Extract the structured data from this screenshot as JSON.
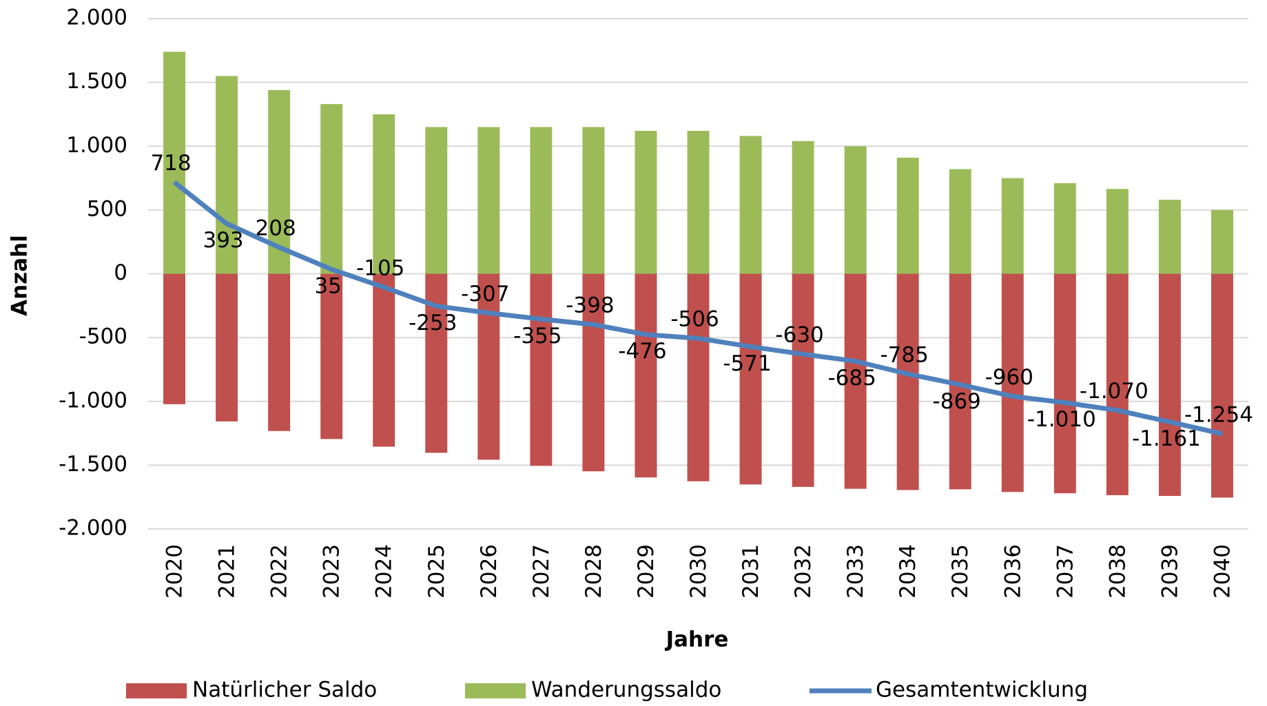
{
  "chart_data": {
    "type": "bar",
    "x_label": "Jahre",
    "y_label": "Anzahl",
    "categories": [
      "2020",
      "2021",
      "2022",
      "2023",
      "2024",
      "2025",
      "2026",
      "2027",
      "2028",
      "2029",
      "2030",
      "2031",
      "2032",
      "2033",
      "2034",
      "2035",
      "2036",
      "2037",
      "2038",
      "2039",
      "2040"
    ],
    "series": [
      {
        "name": "Natürlicher Saldo",
        "color": "#c0504d",
        "type": "bar",
        "values": [
          -1022,
          -1157,
          -1232,
          -1295,
          -1355,
          -1403,
          -1457,
          -1505,
          -1548,
          -1596,
          -1626,
          -1651,
          -1670,
          -1685,
          -1695,
          -1689,
          -1710,
          -1720,
          -1735,
          -1741,
          -1754
        ]
      },
      {
        "name": "Wanderungssaldo",
        "color": "#9bbb59",
        "type": "bar",
        "values": [
          1740,
          1550,
          1440,
          1330,
          1250,
          1150,
          1150,
          1150,
          1150,
          1120,
          1120,
          1080,
          1040,
          1000,
          910,
          820,
          750,
          710,
          665,
          580,
          500
        ]
      },
      {
        "name": "Gesamtentwicklung",
        "color": "#4f81bd",
        "type": "line",
        "values": [
          718,
          393,
          208,
          35,
          -105,
          -253,
          -307,
          -355,
          -398,
          -476,
          -506,
          -571,
          -630,
          -685,
          -785,
          -869,
          -960,
          -1010,
          -1070,
          -1161,
          -1254
        ],
        "value_labels": [
          "718",
          "393",
          "208",
          "35",
          "-105",
          "-253",
          "-307",
          "-355",
          "-398",
          "-476",
          "-506",
          "-571",
          "-630",
          "-685",
          "-785",
          "-869",
          "-960",
          "-1.010",
          "-1.070",
          "-1.161",
          "-1.254"
        ]
      }
    ],
    "ylim": [
      -2000,
      2000
    ],
    "yticks": [
      {
        "value": -2000,
        "label": "-2.000"
      },
      {
        "value": -1500,
        "label": "-1.500"
      },
      {
        "value": -1000,
        "label": "-1.000"
      },
      -500,
      0,
      500,
      {
        "value": 1000,
        "label": "1.000"
      },
      {
        "value": 1500,
        "label": "1.500"
      },
      {
        "value": 2000,
        "label": "2.000"
      }
    ],
    "grid": true,
    "legend": "bottom"
  }
}
